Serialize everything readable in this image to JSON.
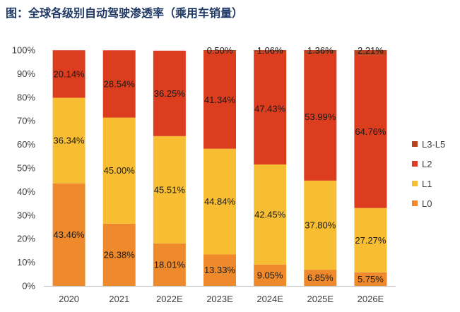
{
  "title": "图：全球各级别自动驾驶渗透率（乘用车销量）",
  "chart_data": {
    "type": "bar",
    "stacked": true,
    "title": "图：全球各级别自动驾驶渗透率（乘用车销量）",
    "categories": [
      "2020",
      "2021",
      "2022E",
      "2023E",
      "2024E",
      "2025E",
      "2026E"
    ],
    "series": [
      {
        "name": "L0",
        "color": "#ee8a2b",
        "values": [
          43.46,
          26.38,
          18.01,
          13.33,
          9.05,
          6.85,
          5.75
        ],
        "labels": [
          "43.46%",
          "26.38%",
          "18.01%",
          "13.33%",
          "9.05%",
          "6.85%",
          "5.75%"
        ]
      },
      {
        "name": "L1",
        "color": "#f7be33",
        "values": [
          36.34,
          45.0,
          45.51,
          44.84,
          42.45,
          37.8,
          27.27
        ],
        "labels": [
          "36.34%",
          "45.00%",
          "45.51%",
          "44.84%",
          "42.45%",
          "37.80%",
          "27.27%"
        ]
      },
      {
        "name": "L2",
        "color": "#dc3d1f",
        "values": [
          20.14,
          28.54,
          36.25,
          41.34,
          47.43,
          53.99,
          64.76
        ],
        "labels": [
          "20.14%",
          "28.54%",
          "36.25%",
          "41.34%",
          "47.43%",
          "53.99%",
          "64.76%"
        ]
      },
      {
        "name": "L3-L5",
        "color": "#b8431f",
        "values": [
          0,
          0,
          0,
          0.5,
          1.06,
          1.36,
          2.21
        ],
        "labels": [
          "",
          "",
          "",
          "0.50%",
          "1.06%",
          "1.36%",
          "2.21%"
        ]
      }
    ],
    "legend_order": [
      "L3-L5",
      "L2",
      "L1",
      "L0"
    ],
    "legend_position": "right",
    "yticks": [
      "0%",
      "10%",
      "20%",
      "30%",
      "40%",
      "50%",
      "60%",
      "70%",
      "80%",
      "90%",
      "100%"
    ],
    "ylim": [
      0,
      100
    ],
    "grid": false
  }
}
